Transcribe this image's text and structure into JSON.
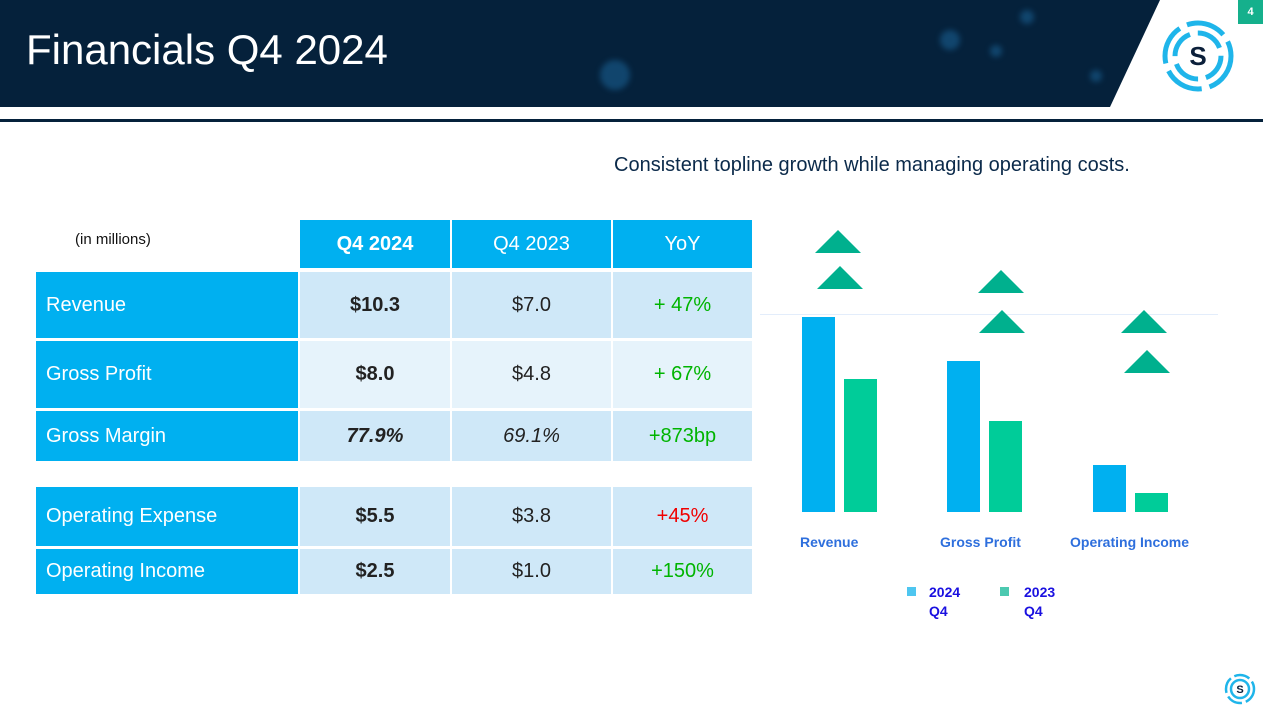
{
  "header": {
    "title": "Financials Q4 2024",
    "page_number": "4"
  },
  "subtitle": "Consistent topline growth while managing operating costs.",
  "table": {
    "units": "(in millions)",
    "columns": [
      "Q4 2024",
      "Q4 2023",
      "YoY"
    ],
    "rows": [
      {
        "label": "Revenue",
        "q4_2024": "$10.3",
        "q4_2023": "$7.0",
        "yoy": "+ 47%"
      },
      {
        "label": "Gross Profit",
        "q4_2024": "$8.0",
        "q4_2023": "$4.8",
        "yoy": "+ 67%"
      },
      {
        "label": "Gross Margin",
        "q4_2024": "77.9%",
        "q4_2023": "69.1%",
        "yoy": "+873bp"
      },
      {
        "label": "Operating Expense",
        "q4_2024": "$5.5",
        "q4_2023": "$3.8",
        "yoy": "+45%"
      },
      {
        "label": "Operating Income",
        "q4_2024": "$2.5",
        "q4_2023": "$1.0",
        "yoy": "+150%"
      }
    ]
  },
  "chart_data": {
    "type": "bar",
    "categories": [
      "Revenue",
      "Gross Profit",
      "Operating Income"
    ],
    "series": [
      {
        "name": "2024 Q4",
        "values": [
          10.3,
          8.0,
          2.5
        ],
        "color": "#00b0f0"
      },
      {
        "name": "2023 Q4",
        "values": [
          7.0,
          4.8,
          1.0
        ],
        "color": "#00cc99"
      }
    ],
    "legend": [
      {
        "line1": "2024",
        "line2": "Q4"
      },
      {
        "line1": "2023",
        "line2": "Q4"
      }
    ],
    "legend_position": "bottom",
    "ylim": [
      0,
      10.3
    ]
  },
  "colors": {
    "navy": "#05213b",
    "accent": "#00b0f0",
    "green": "#00b08e"
  }
}
